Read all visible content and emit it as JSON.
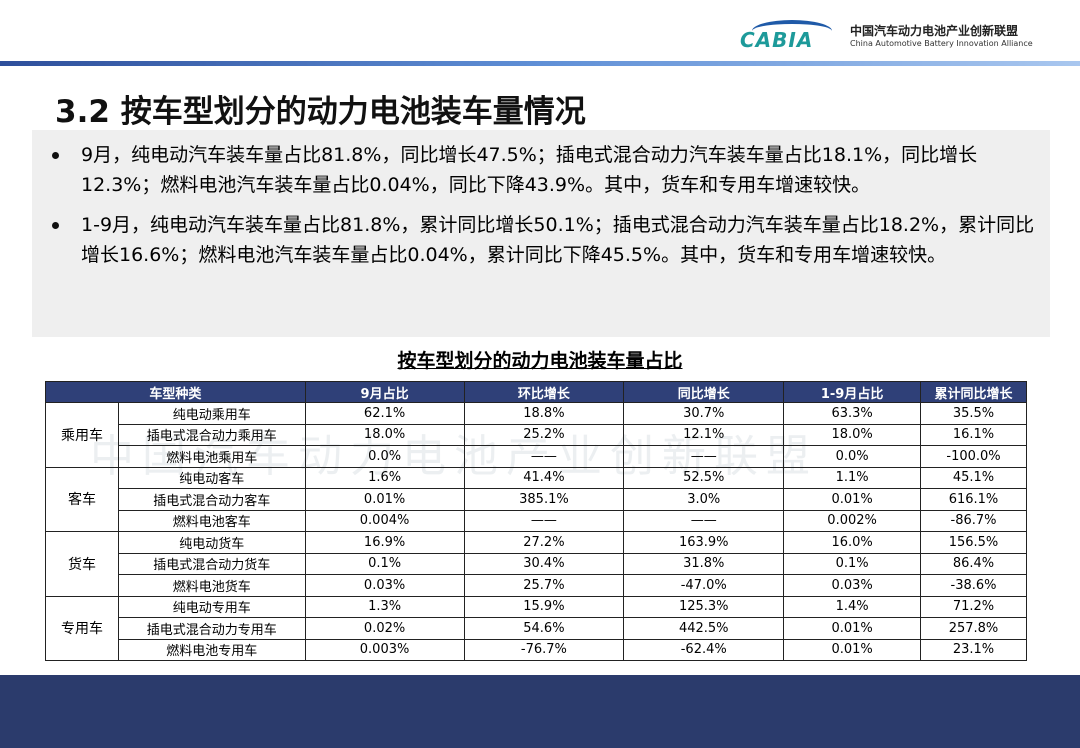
{
  "logo": {
    "mark_text": "CABIA",
    "name_cn": "中国汽车动力电池产业创新联盟",
    "name_en": "China Automotive Battery Innovation Alliance"
  },
  "title": "3.2 按车型划分的动力电池装车量情况",
  "bullets": [
    "9月，纯电动汽车装车量占比81.8%，同比增长47.5%；插电式混合动力汽车装车量占比18.1%，同比增长12.3%；燃料电池汽车装车量占比0.04%，同比下降43.9%。其中，货车和专用车增速较快。",
    "1-9月，纯电动汽车装车量占比81.8%，累计同比增长50.1%；插电式混合动力汽车装车量占比18.2%，累计同比增长16.6%；燃料电池汽车装车量占比0.04%，累计同比下降45.5%。其中，货车和专用车增速较快。"
  ],
  "table": {
    "title": "按车型划分的动力电池装车量占比",
    "headers": [
      "车型种类",
      "9月占比",
      "环比增长",
      "同比增长",
      "1-9月占比",
      "累计同比增长"
    ],
    "groups": [
      {
        "category": "乘用车",
        "rows": [
          [
            "纯电动乘用车",
            "62.1%",
            "18.8%",
            "30.7%",
            "63.3%",
            "35.5%"
          ],
          [
            "插电式混合动力乘用车",
            "18.0%",
            "25.2%",
            "12.1%",
            "18.0%",
            "16.1%"
          ],
          [
            "燃料电池乘用车",
            "0.0%",
            "——",
            "——",
            "0.0%",
            "-100.0%"
          ]
        ]
      },
      {
        "category": "客车",
        "rows": [
          [
            "纯电动客车",
            "1.6%",
            "41.4%",
            "52.5%",
            "1.1%",
            "45.1%"
          ],
          [
            "插电式混合动力客车",
            "0.01%",
            "385.1%",
            "3.0%",
            "0.01%",
            "616.1%"
          ],
          [
            "燃料电池客车",
            "0.004%",
            "——",
            "——",
            "0.002%",
            "-86.7%"
          ]
        ]
      },
      {
        "category": "货车",
        "rows": [
          [
            "纯电动货车",
            "16.9%",
            "27.2%",
            "163.9%",
            "16.0%",
            "156.5%"
          ],
          [
            "插电式混合动力货车",
            "0.1%",
            "30.4%",
            "31.8%",
            "0.1%",
            "86.4%"
          ],
          [
            "燃料电池货车",
            "0.03%",
            "25.7%",
            "-47.0%",
            "0.03%",
            "-38.6%"
          ]
        ]
      },
      {
        "category": "专用车",
        "rows": [
          [
            "纯电动专用车",
            "1.3%",
            "15.9%",
            "125.3%",
            "1.4%",
            "71.2%"
          ],
          [
            "插电式混合动力专用车",
            "0.02%",
            "54.6%",
            "442.5%",
            "0.01%",
            "257.8%"
          ],
          [
            "燃料电池专用车",
            "0.003%",
            "-76.7%",
            "-62.4%",
            "0.01%",
            "23.1%"
          ]
        ]
      }
    ]
  },
  "watermark": "中国汽车动力电池产业创新联盟",
  "colors": {
    "header_bg": "#2f4078",
    "footer_bg": "#2b3b6c",
    "bullet_bg": "#efefef"
  }
}
